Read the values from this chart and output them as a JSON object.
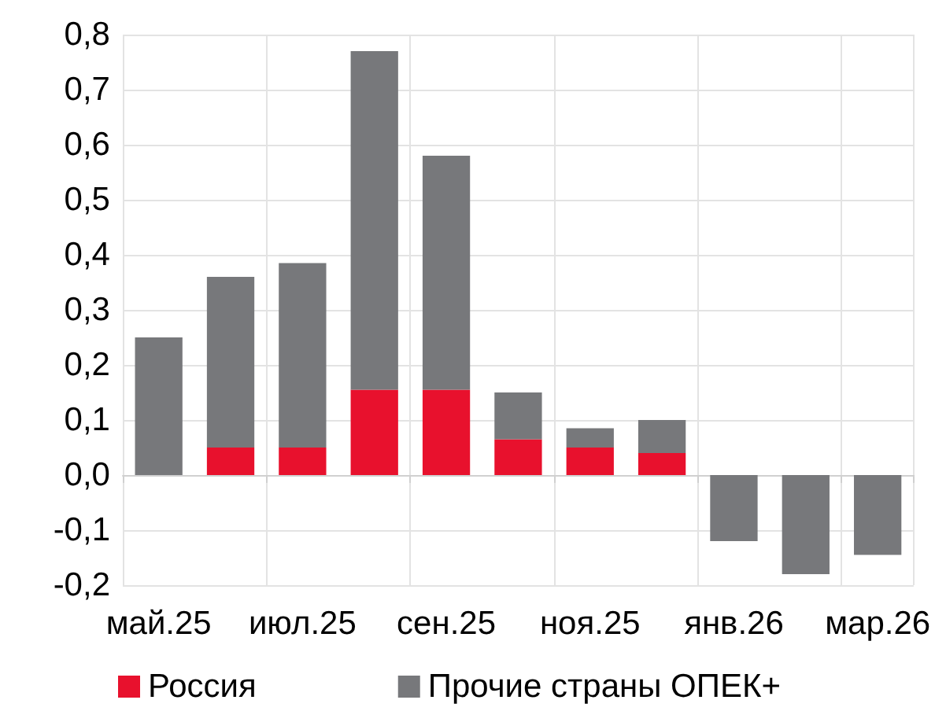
{
  "chart_data": {
    "type": "bar",
    "stacked": true,
    "categories": [
      "май.25",
      null,
      "июл.25",
      null,
      "сен.25",
      null,
      "ноя.25",
      null,
      "янв.26",
      null,
      "мар.26"
    ],
    "series": [
      {
        "name": "Россия",
        "color": "#e8112d",
        "values": [
          0,
          0.05,
          0.05,
          0.155,
          0.155,
          0.065,
          0.05,
          0.04,
          0,
          0,
          0
        ]
      },
      {
        "name": "Прочие страны ОПЕК+",
        "color": "#77787b",
        "values": [
          0.25,
          0.31,
          0.335,
          0.615,
          0.425,
          0.085,
          0.035,
          0.06,
          -0.12,
          -0.18,
          -0.145
        ]
      }
    ],
    "ylim": [
      -0.2,
      0.8
    ],
    "yticks": [
      {
        "value": -0.2,
        "label": "-0,2"
      },
      {
        "value": -0.1,
        "label": "-0,1"
      },
      {
        "value": 0,
        "label": "0,0"
      },
      {
        "value": 0.1,
        "label": "0,1"
      },
      {
        "value": 0.2,
        "label": "0,2"
      },
      {
        "value": 0.3,
        "label": "0,3"
      },
      {
        "value": 0.4,
        "label": "0,4"
      },
      {
        "value": 0.5,
        "label": "0,5"
      },
      {
        "value": 0.6,
        "label": "0,6"
      },
      {
        "value": 0.7,
        "label": "0,7"
      },
      {
        "value": 0.8,
        "label": "0,8"
      }
    ],
    "grid": true,
    "legend": "bottom"
  }
}
